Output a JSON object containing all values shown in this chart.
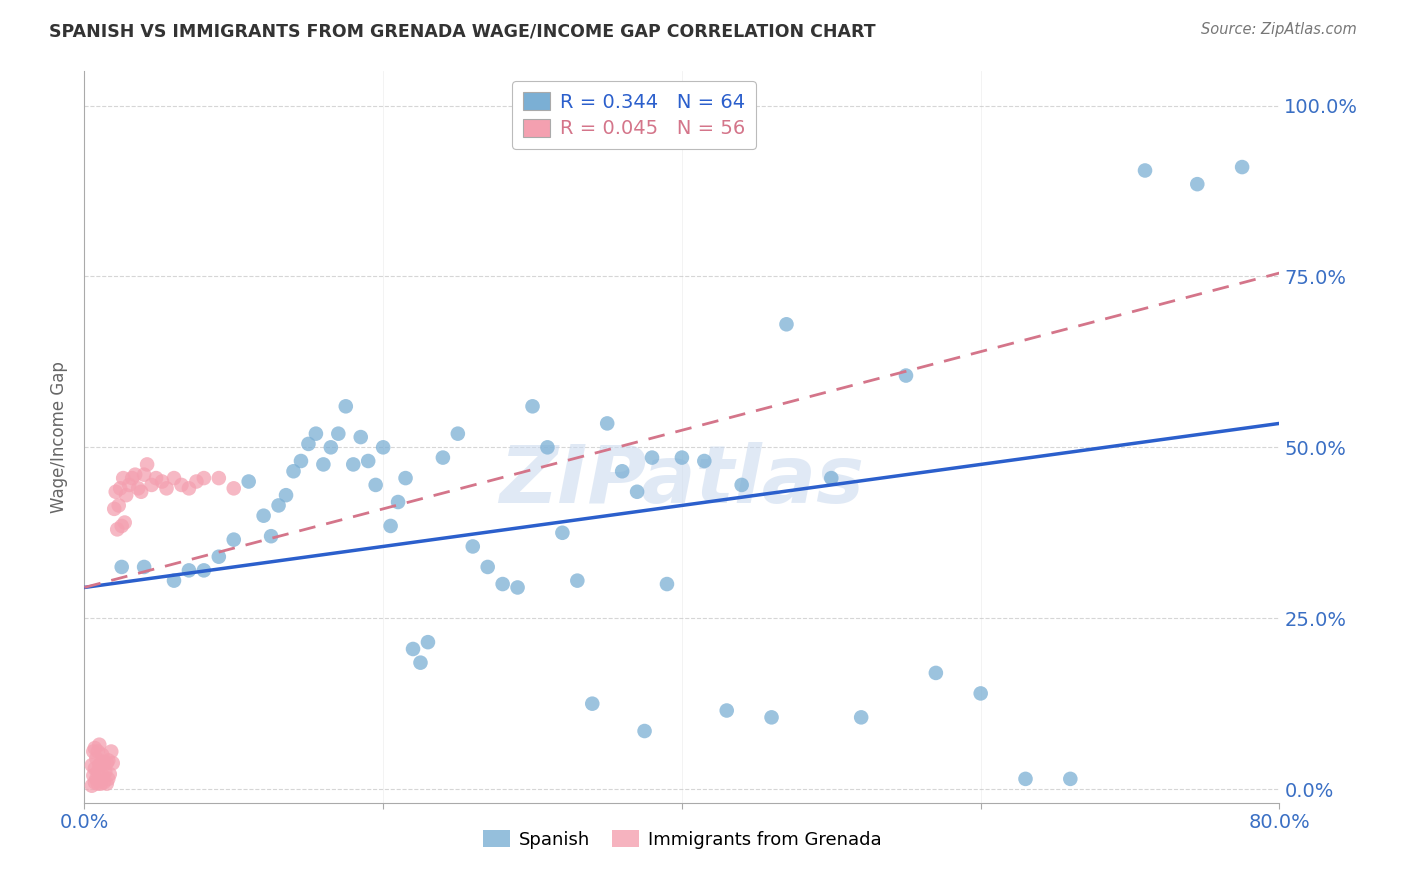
{
  "title": "SPANISH VS IMMIGRANTS FROM GRENADA WAGE/INCOME GAP CORRELATION CHART",
  "source": "Source: ZipAtlas.com",
  "ylabel": "Wage/Income Gap",
  "ytick_labels": [
    "0.0%",
    "25.0%",
    "50.0%",
    "75.0%",
    "100.0%"
  ],
  "ytick_values": [
    0.0,
    0.25,
    0.5,
    0.75,
    1.0
  ],
  "xlim": [
    0.0,
    0.8
  ],
  "ylim": [
    -0.02,
    1.05
  ],
  "watermark": "ZIPatlas",
  "legend_R1": "R = 0.344",
  "legend_N1": "N = 64",
  "legend_R2": "R = 0.045",
  "legend_N2": "N = 56",
  "series1_name": "Spanish",
  "series1_color": "#7bafd4",
  "series2_name": "Immigrants from Grenada",
  "series2_color": "#f4a0b0",
  "trendline1_color": "#2b5fcc",
  "trendline2_color": "#d4758a",
  "background_color": "#ffffff",
  "grid_color": "#cccccc",
  "title_color": "#333333",
  "axis_label_color": "#3a6fc4",
  "trendline1_x0": 0.0,
  "trendline1_y0": 0.295,
  "trendline1_x1": 0.8,
  "trendline1_y1": 0.535,
  "trendline2_x0": 0.0,
  "trendline2_y0": 0.295,
  "trendline2_x1": 0.8,
  "trendline2_y1": 0.755,
  "scatter1_x": [
    0.025,
    0.04,
    0.06,
    0.07,
    0.08,
    0.09,
    0.1,
    0.11,
    0.12,
    0.125,
    0.13,
    0.135,
    0.14,
    0.145,
    0.15,
    0.155,
    0.16,
    0.165,
    0.17,
    0.175,
    0.18,
    0.185,
    0.19,
    0.195,
    0.2,
    0.205,
    0.21,
    0.215,
    0.22,
    0.225,
    0.23,
    0.24,
    0.25,
    0.26,
    0.27,
    0.28,
    0.29,
    0.3,
    0.31,
    0.32,
    0.33,
    0.34,
    0.35,
    0.36,
    0.37,
    0.375,
    0.38,
    0.39,
    0.4,
    0.415,
    0.43,
    0.44,
    0.46,
    0.47,
    0.5,
    0.52,
    0.55,
    0.57,
    0.6,
    0.63,
    0.66,
    0.71,
    0.745,
    0.775
  ],
  "scatter1_y": [
    0.325,
    0.325,
    0.305,
    0.32,
    0.32,
    0.34,
    0.365,
    0.45,
    0.4,
    0.37,
    0.415,
    0.43,
    0.465,
    0.48,
    0.505,
    0.52,
    0.475,
    0.5,
    0.52,
    0.56,
    0.475,
    0.515,
    0.48,
    0.445,
    0.5,
    0.385,
    0.42,
    0.455,
    0.205,
    0.185,
    0.215,
    0.485,
    0.52,
    0.355,
    0.325,
    0.3,
    0.295,
    0.56,
    0.5,
    0.375,
    0.305,
    0.125,
    0.535,
    0.465,
    0.435,
    0.085,
    0.485,
    0.3,
    0.485,
    0.48,
    0.115,
    0.445,
    0.105,
    0.68,
    0.455,
    0.105,
    0.605,
    0.17,
    0.14,
    0.015,
    0.015,
    0.905,
    0.885,
    0.91
  ],
  "scatter2_x": [
    0.005,
    0.005,
    0.006,
    0.006,
    0.007,
    0.007,
    0.007,
    0.008,
    0.008,
    0.009,
    0.009,
    0.009,
    0.01,
    0.01,
    0.01,
    0.011,
    0.011,
    0.012,
    0.012,
    0.013,
    0.013,
    0.014,
    0.015,
    0.015,
    0.016,
    0.016,
    0.017,
    0.018,
    0.019,
    0.02,
    0.021,
    0.022,
    0.023,
    0.024,
    0.025,
    0.026,
    0.027,
    0.028,
    0.03,
    0.032,
    0.034,
    0.036,
    0.038,
    0.04,
    0.042,
    0.045,
    0.048,
    0.052,
    0.055,
    0.06,
    0.065,
    0.07,
    0.075,
    0.08,
    0.09,
    0.1
  ],
  "scatter2_y": [
    0.005,
    0.035,
    0.02,
    0.055,
    0.01,
    0.03,
    0.06,
    0.015,
    0.045,
    0.008,
    0.025,
    0.055,
    0.012,
    0.035,
    0.065,
    0.008,
    0.038,
    0.02,
    0.05,
    0.01,
    0.04,
    0.025,
    0.008,
    0.038,
    0.015,
    0.042,
    0.022,
    0.055,
    0.038,
    0.41,
    0.435,
    0.38,
    0.415,
    0.44,
    0.385,
    0.455,
    0.39,
    0.43,
    0.445,
    0.455,
    0.46,
    0.44,
    0.435,
    0.46,
    0.475,
    0.445,
    0.455,
    0.45,
    0.44,
    0.455,
    0.445,
    0.44,
    0.45,
    0.455,
    0.455,
    0.44
  ]
}
